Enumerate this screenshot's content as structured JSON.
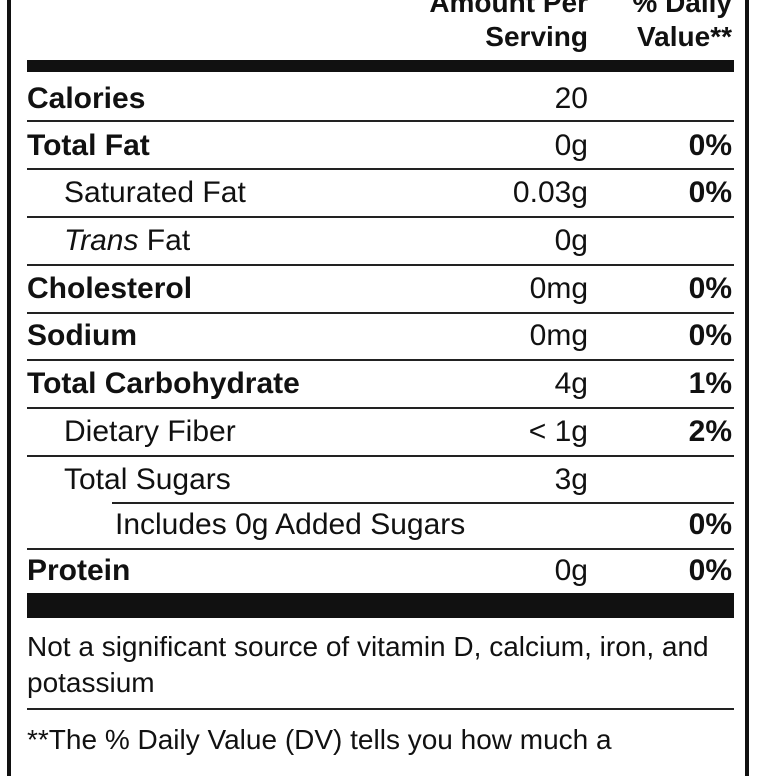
{
  "header": {
    "amount_line1": "Amount Per",
    "amount_line2": "Serving",
    "dv_line1": "% Daily",
    "dv_line2": "Value**"
  },
  "rows": [
    {
      "label": "Calories",
      "amount": "20",
      "dv": ""
    },
    {
      "label": "Total Fat",
      "amount": "0g",
      "dv": "0%"
    },
    {
      "label": "Saturated Fat",
      "amount": "0.03g",
      "dv": "0%"
    },
    {
      "label_italic": "Trans",
      "label": " Fat",
      "amount": "0g",
      "dv": ""
    },
    {
      "label": "Cholesterol",
      "amount": "0mg",
      "dv": "0%"
    },
    {
      "label": "Sodium",
      "amount": "0mg",
      "dv": "0%"
    },
    {
      "label": "Total Carbohydrate",
      "amount": "4g",
      "dv": "1%"
    },
    {
      "label": "Dietary Fiber",
      "amount": "< 1g",
      "dv": "2%"
    },
    {
      "label": "Total Sugars",
      "amount": "3g",
      "dv": ""
    },
    {
      "label": "Includes 0g Added Sugars",
      "amount": "",
      "dv": "0%"
    },
    {
      "label": "Protein",
      "amount": "0g",
      "dv": "0%"
    }
  ],
  "footnote_vitamins": "Not a significant source of vitamin D, calcium, iron, and potassium",
  "footnote_dv": "**The % Daily Value (DV) tells you how much a"
}
